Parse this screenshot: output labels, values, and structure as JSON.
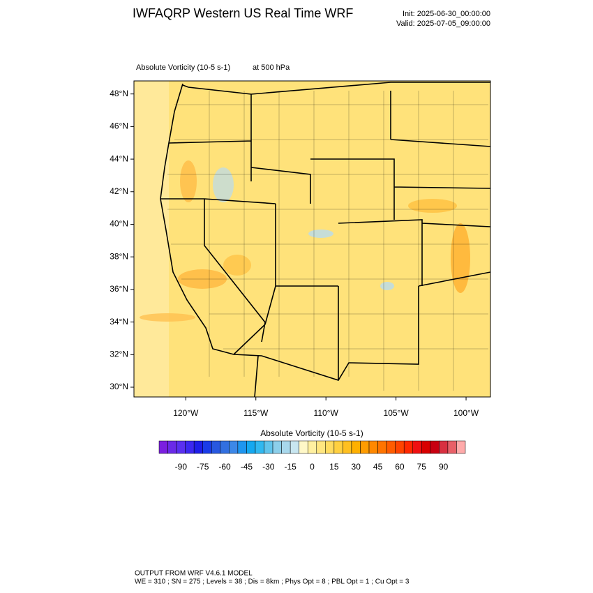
{
  "header": {
    "title": "IWFAQRP Western US Real Time WRF",
    "init": "Init: 2025-06-30_00:00:00",
    "valid": "Valid: 2025-07-05_09:00:00"
  },
  "plot": {
    "field": "Absolute Vorticity   (10-5 s-1)",
    "level": "at   500 hPa",
    "lat_range": [
      29.4,
      48.8
    ],
    "lon_range": [
      -123.7,
      -98.26
    ],
    "lat_ticks": [
      {
        "value": 48,
        "label": "48°N"
      },
      {
        "value": 46,
        "label": "46°N"
      },
      {
        "value": 44,
        "label": "44°N"
      },
      {
        "value": 42,
        "label": "42°N"
      },
      {
        "value": 40,
        "label": "40°N"
      },
      {
        "value": 38,
        "label": "38°N"
      },
      {
        "value": 36,
        "label": "36°N"
      },
      {
        "value": 34,
        "label": "34°N"
      },
      {
        "value": 32,
        "label": "32°N"
      },
      {
        "value": 30,
        "label": "30°N"
      }
    ],
    "lon_ticks": [
      {
        "value": -120,
        "label": "120°W"
      },
      {
        "value": -115,
        "label": "115°W"
      },
      {
        "value": -110,
        "label": "110°W"
      },
      {
        "value": -105,
        "label": "105°W"
      },
      {
        "value": -100,
        "label": "100°W"
      }
    ]
  },
  "colorbar": {
    "title": "Absolute Vorticity  (10-5 s-1)",
    "range": [
      -105,
      105
    ],
    "ticks": [
      -90,
      -75,
      -60,
      -45,
      -30,
      -15,
      0,
      15,
      30,
      45,
      60,
      75,
      90
    ],
    "colors": [
      "#7b1fe0",
      "#6a2ae8",
      "#5a30f0",
      "#3c28f0",
      "#1e1ee8",
      "#1a3ce8",
      "#2858e0",
      "#3270e0",
      "#3c88e8",
      "#1e96f0",
      "#14a8f0",
      "#30b8f0",
      "#60c4ec",
      "#8ccfea",
      "#a8d8ec",
      "#c8e6f0",
      "#fff8c8",
      "#fff0a0",
      "#ffe680",
      "#ffdc60",
      "#ffd040",
      "#ffc020",
      "#ffb000",
      "#ff9c00",
      "#ff8800",
      "#ff7400",
      "#ff5c00",
      "#ff4400",
      "#ff2800",
      "#f01010",
      "#d80000",
      "#c80010",
      "#d83040",
      "#e86068",
      "#ffaaaa"
    ]
  },
  "footer": {
    "line1": "OUTPUT FROM WRF V4.6.1 MODEL",
    "line2": "WE = 310 ; SN = 275 ; Levels = 38 ; Dis = 8km ; Phys Opt = 8 ; PBL Opt = 1 ; Cu Opt = 3"
  }
}
